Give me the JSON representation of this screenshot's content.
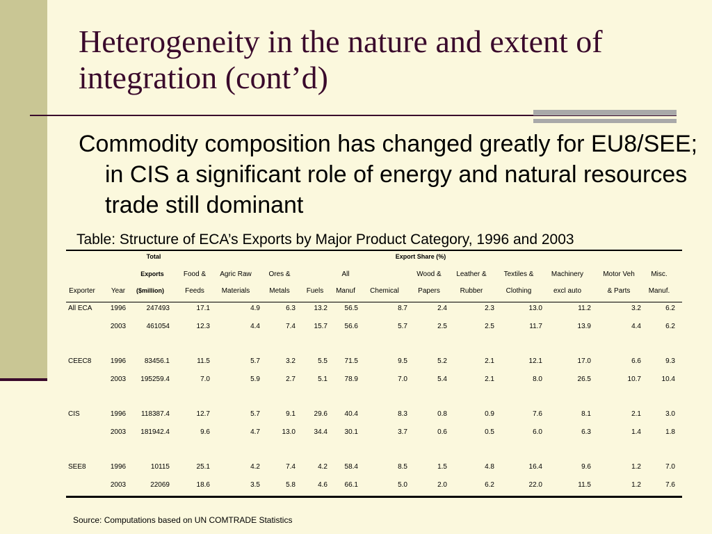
{
  "slide": {
    "title": "Heterogeneity in the nature and extent of integration (cont’d)",
    "bullet": "Commodity composition has changed greatly for EU8/SEE; in CIS a significant role of energy and natural resources trade still dominant",
    "table_caption": "Table: Structure of ECA’s Exports by Major Product Category, 1996 and 2003",
    "source": "Source: Computations based on UN COMTRADE Statistics"
  },
  "table": {
    "header_total": "Total",
    "header_exports": "Exports",
    "header_millions": "($million)",
    "header_export_share": "Export Share (%)",
    "columns": [
      {
        "line1": "",
        "line2": "Exporter"
      },
      {
        "line1": "",
        "line2": "Year"
      },
      {
        "line1": "",
        "line2": ""
      },
      {
        "line1": "Food &",
        "line2": "Feeds"
      },
      {
        "line1": "Agric Raw",
        "line2": "Materials"
      },
      {
        "line1": "Ores &",
        "line2": "Metals"
      },
      {
        "line1": "",
        "line2": "Fuels"
      },
      {
        "line1": "All",
        "line2": "Manuf"
      },
      {
        "line1": "",
        "line2": "Chemical"
      },
      {
        "line1": "Wood &",
        "line2": "Papers"
      },
      {
        "line1": "Leather &",
        "line2": "Rubber"
      },
      {
        "line1": "Textiles &",
        "line2": "Clothing"
      },
      {
        "line1": "Machinery",
        "line2": "excl auto"
      },
      {
        "line1": "Motor Veh",
        "line2": "& Parts"
      },
      {
        "line1": "Misc.",
        "line2": "Manuf."
      }
    ],
    "rows": [
      [
        "All ECA",
        "1996",
        "247493",
        "17.1",
        "4.9",
        "6.3",
        "13.2",
        "56.5",
        "8.7",
        "2.4",
        "2.3",
        "13.0",
        "11.2",
        "3.2",
        "6.2"
      ],
      [
        "",
        "2003",
        "461054",
        "12.3",
        "4.4",
        "7.4",
        "15.7",
        "56.6",
        "5.7",
        "2.5",
        "2.5",
        "11.7",
        "13.9",
        "4.4",
        "6.2"
      ],
      [
        "CEEC8",
        "1996",
        "83456.1",
        "11.5",
        "5.7",
        "3.2",
        "5.5",
        "71.5",
        "9.5",
        "5.2",
        "2.1",
        "12.1",
        "17.0",
        "6.6",
        "9.3"
      ],
      [
        "",
        "2003",
        "195259.4",
        "7.0",
        "5.9",
        "2.7",
        "5.1",
        "78.9",
        "7.0",
        "5.4",
        "2.1",
        "8.0",
        "26.5",
        "10.7",
        "10.4"
      ],
      [
        "CIS",
        "1996",
        "118387.4",
        "12.7",
        "5.7",
        "9.1",
        "29.6",
        "40.4",
        "8.3",
        "0.8",
        "0.9",
        "7.6",
        "8.1",
        "2.1",
        "3.0"
      ],
      [
        "",
        "2003",
        "181942.4",
        "9.6",
        "4.7",
        "13.0",
        "34.4",
        "30.1",
        "3.7",
        "0.6",
        "0.5",
        "6.0",
        "6.3",
        "1.4",
        "1.8"
      ],
      [
        "SEE8",
        "1996",
        "10115",
        "25.1",
        "4.2",
        "7.4",
        "4.2",
        "58.4",
        "8.5",
        "1.5",
        "4.8",
        "16.4",
        "9.6",
        "1.2",
        "7.0"
      ],
      [
        "",
        "2003",
        "22069",
        "18.6",
        "3.5",
        "5.8",
        "4.6",
        "66.1",
        "5.0",
        "2.0",
        "6.2",
        "22.0",
        "11.5",
        "1.2",
        "7.6"
      ]
    ]
  }
}
